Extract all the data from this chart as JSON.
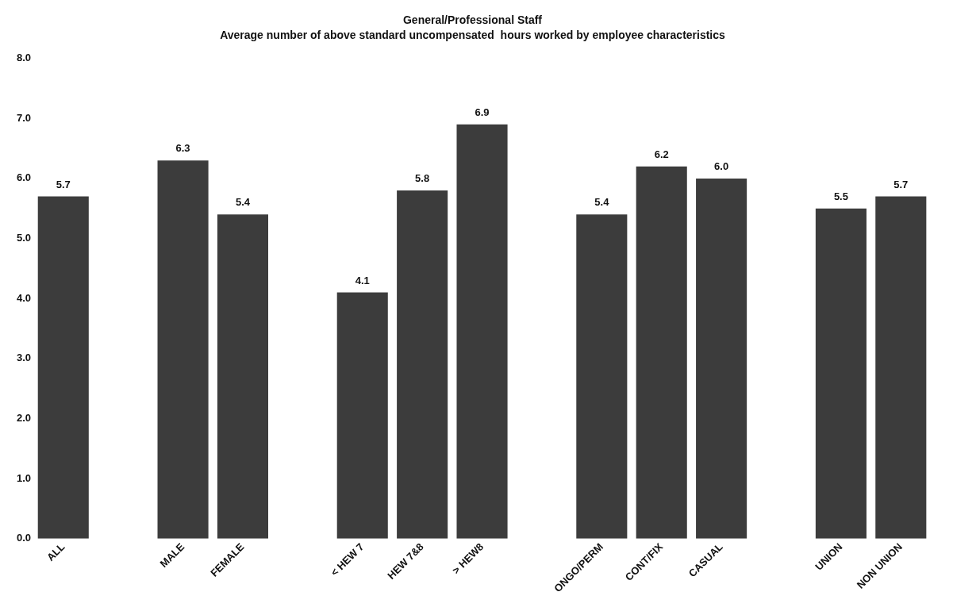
{
  "chart_data": {
    "type": "bar",
    "title": "General/Professional Staff",
    "subtitle": "Average number of above standard uncompensated  hours worked by employee characteristics",
    "categories": [
      "ALL",
      null,
      "MALE",
      "FEMALE",
      null,
      "< HEW 7",
      "HEW 7&8",
      "> HEW8",
      null,
      "ONGO/PERM",
      "CONT/FIX",
      "CASUAL",
      null,
      "UNION",
      "NON UNION"
    ],
    "values": [
      5.7,
      null,
      6.3,
      5.4,
      null,
      4.1,
      5.8,
      6.9,
      null,
      5.4,
      6.2,
      6.0,
      null,
      5.5,
      5.7
    ],
    "value_labels": [
      "5.7",
      null,
      "6.3",
      "5.4",
      null,
      "4.1",
      "5.8",
      "6.9",
      null,
      "5.4",
      "6.2",
      "6.0",
      null,
      "5.5",
      "5.7"
    ],
    "color": "#3c3c3c",
    "ylim": [
      0,
      8
    ],
    "yticks": [
      {
        "value": 0,
        "label": "0.0"
      },
      {
        "value": 1,
        "label": "1.0"
      },
      {
        "value": 2,
        "label": "2.0"
      },
      {
        "value": 3,
        "label": "3.0"
      },
      {
        "value": 4,
        "label": "4.0"
      },
      {
        "value": 5,
        "label": "5.0"
      },
      {
        "value": 6,
        "label": "6.0"
      },
      {
        "value": 7,
        "label": "7.0"
      },
      {
        "value": 8,
        "label": "8.0"
      }
    ],
    "grid": false,
    "legend": false
  }
}
